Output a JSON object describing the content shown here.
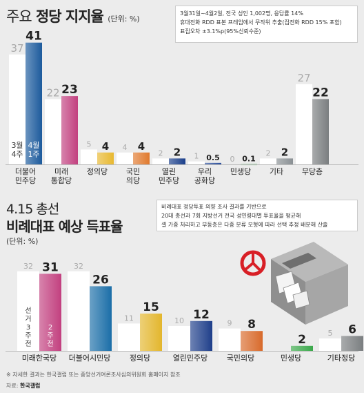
{
  "chart1_title_prefix": "주요",
  "chart1_title_main": "정당 지지율",
  "chart1_unit": "(단위: %)",
  "chart1_note": [
    "3월31일~4월2일, 전국 성인 1,002명, 응답률 14%",
    "휴대전화 RDD 표본 프레임에서 무작위 추출(집전화 RDD 15% 포함)",
    "표집오차 ±3.1%p(95%신뢰수준)"
  ],
  "chart1_week_labels": {
    "prev": "3월 4주",
    "curr": "4월 1주"
  },
  "chart2_title_prefix": "4.15 총선",
  "chart2_title_main": "비례대표 예상 득표율",
  "chart2_unit": "(단위: %)",
  "chart2_note": [
    "비례대표 정당투표 의향 조사 결과를 기반으로",
    "20대 총선과 7회 지방선거 전국 성연령대별 투표율을 평균해",
    "셀 가중 처리하고 부동층은 다중 분류 모형에 따라 선택 추정 배분해 산출"
  ],
  "chart2_week_labels": {
    "prev": "선거 3주 전",
    "curr": "2주 전"
  },
  "footnote": "※ 자세한 결과는 한국갤럽 또는 중앙선거여론조사심의위원회 홈페이지 참조",
  "source_label": "자료:",
  "source_name": "한국갤럽",
  "colors": {
    "background": "#ececec",
    "prev_bar": "#ffffff",
    "text_dark": "#222222",
    "text_light": "#aaaaaa",
    "accent_stamp": "#d81f26"
  },
  "chart_data": [
    {
      "type": "bar",
      "title": "주요 정당 지지율",
      "ylabel": "(단위: %)",
      "ylim": [
        0,
        45
      ],
      "categories": [
        "더불어 민주당",
        "미래 통합당",
        "정의당",
        "국민 의당",
        "열린 민주당",
        "우리 공화당",
        "민생당",
        "기타",
        "무당층"
      ],
      "series": [
        {
          "name": "3월 4주",
          "values": [
            37,
            22,
            5,
            4,
            2,
            1,
            0,
            2,
            27
          ],
          "value_labels": [
            "37",
            "22",
            "5",
            "4",
            "2",
            "1",
            "0",
            "2",
            "27"
          ]
        },
        {
          "name": "4월 1주",
          "values": [
            41,
            23,
            4,
            4,
            2,
            0.5,
            0.1,
            2,
            22
          ],
          "value_labels": [
            "41",
            "23",
            "4",
            "4",
            "2",
            "0.5",
            "0.1",
            "2",
            "22"
          ]
        }
      ],
      "bar_colors": [
        "#1c5a9c",
        "#c2407f",
        "#e8b830",
        "#e0792d",
        "#1a3e8a",
        "#2a4e9c",
        "#3aa84a",
        "#8a9094",
        "#7a7e80"
      ],
      "grid": false,
      "legend": "none"
    },
    {
      "type": "bar",
      "title": "4.15 총선 비례대표 예상 득표율",
      "ylabel": "(단위: %)",
      "ylim": [
        0,
        35
      ],
      "categories": [
        "미래한국당",
        "더불어시민당",
        "정의당",
        "열린민주당",
        "국민의당",
        "민생당",
        "기타정당"
      ],
      "series": [
        {
          "name": "선거 3주 전",
          "values": [
            32,
            32,
            11,
            10,
            9,
            null,
            5
          ],
          "value_labels": [
            "32",
            "32",
            "11",
            "10",
            "9",
            "",
            "5"
          ]
        },
        {
          "name": "2주 전",
          "values": [
            31,
            26,
            15,
            12,
            8,
            2,
            6
          ],
          "value_labels": [
            "31",
            "26",
            "15",
            "12",
            "8",
            "2",
            "6"
          ]
        }
      ],
      "bar_colors": [
        "#c2407f",
        "#1b6ea8",
        "#e3b62d",
        "#1f3f8a",
        "#d86a2b",
        "#3aa84a",
        "#7a7e80"
      ],
      "grid": false,
      "legend": "none"
    }
  ]
}
